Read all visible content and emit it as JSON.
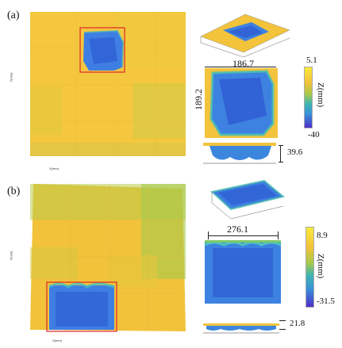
{
  "panel_a": {
    "label": "(a)",
    "width_dim": "186.7",
    "height_dim": "189.2",
    "depth_dim": "39.6",
    "colorbar": {
      "max": "5.1",
      "min": "-40",
      "title": "Z(mm)"
    }
  },
  "panel_b": {
    "label": "(b)",
    "width_dim": "276.1",
    "depth_dim": "21.8",
    "colorbar": {
      "max": "8.9",
      "min": "-31.5",
      "title": "Z(mm)"
    }
  },
  "colors": {
    "surface": "#f1c23a",
    "defect": "#3a7fe0",
    "frame": "#e0252b"
  }
}
